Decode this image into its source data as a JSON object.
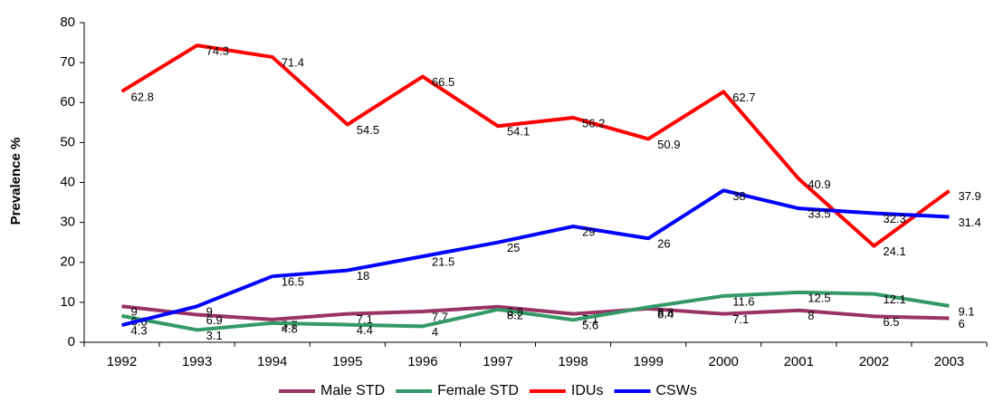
{
  "chart_data": {
    "type": "line",
    "y_label": "Prevalence %",
    "categories": [
      "1992",
      "1993",
      "1994",
      "1995",
      "1996",
      "1997",
      "1998",
      "1999",
      "2000",
      "2001",
      "2002",
      "2003"
    ],
    "series": [
      {
        "name": "Male STD",
        "color": "#993366",
        "values": [
          9,
          6.9,
          5.7,
          7.1,
          7.7,
          8.9,
          7.1,
          8.4,
          7.1,
          8,
          6.5,
          6
        ]
      },
      {
        "name": "Female STD",
        "color": "#339966",
        "values": [
          6.6,
          3.1,
          4.8,
          4.4,
          4,
          8.2,
          5.6,
          8.8,
          11.6,
          12.5,
          12.1,
          9.1
        ]
      },
      {
        "name": "IDUs",
        "color": "#ff0000",
        "values": [
          62.8,
          74.3,
          71.4,
          54.5,
          66.5,
          54.1,
          56.2,
          50.9,
          62.7,
          40.9,
          24.1,
          37.9
        ]
      },
      {
        "name": "CSWs",
        "color": "#0000ff",
        "values": [
          4.3,
          9,
          16.5,
          18,
          21.5,
          25,
          29,
          26,
          38,
          33.5,
          32.3,
          31.4
        ]
      }
    ],
    "ylim": [
      0,
      80
    ],
    "yticks": [
      0,
      10,
      20,
      30,
      40,
      50,
      60,
      70,
      80
    ],
    "grid": false,
    "legend": "bottom"
  }
}
